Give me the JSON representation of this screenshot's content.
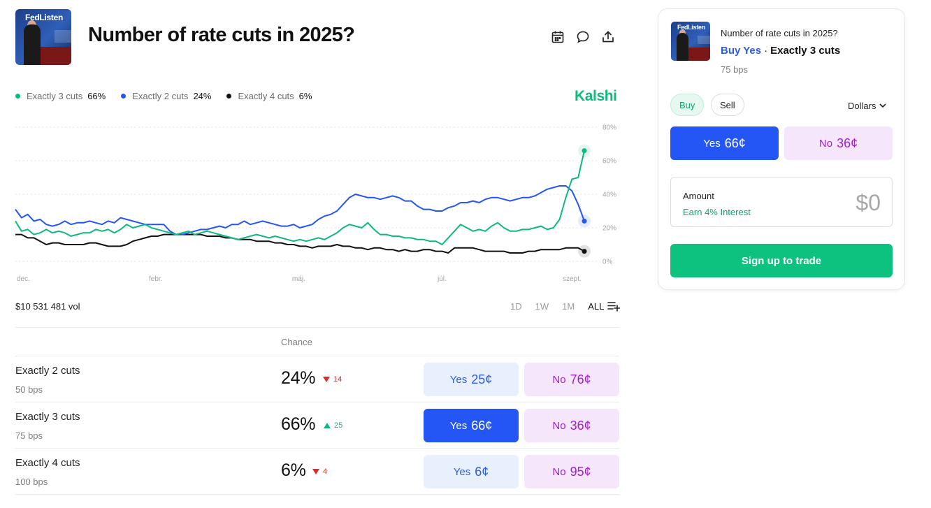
{
  "header": {
    "title": "Number of rate cuts in 2025?",
    "thumbnail_text": "FedListen",
    "icons": [
      "calendar-icon",
      "comment-icon",
      "share-icon"
    ]
  },
  "legend": [
    {
      "label": "Exactly 3 cuts",
      "value": "66%",
      "color": "#0fb97b"
    },
    {
      "label": "Exactly 2 cuts",
      "value": "24%",
      "color": "#2456f5"
    },
    {
      "label": "Exactly 4 cuts",
      "value": "6%",
      "color": "#111111"
    }
  ],
  "brand": "Kalshi",
  "chart_data": {
    "type": "line",
    "x_ticks": [
      "dec.",
      "febr.",
      "máj.",
      "júl.",
      "szept."
    ],
    "y_ticks": [
      "80%",
      "60%",
      "40%",
      "20%",
      "0%"
    ],
    "ylim": [
      0,
      80
    ],
    "grid": true,
    "series": [
      {
        "name": "Exactly 3 cuts",
        "color": "#0fb97b",
        "values": [
          24,
          18,
          19,
          16,
          17,
          19,
          17,
          18,
          17,
          15,
          16,
          17,
          17,
          19,
          18,
          19,
          17,
          19,
          22,
          20,
          21,
          22,
          20,
          19,
          18,
          17,
          16,
          17,
          18,
          16,
          17,
          18,
          17,
          16,
          15,
          14,
          13,
          14,
          15,
          16,
          15,
          14,
          15,
          14,
          13,
          12,
          13,
          12,
          13,
          14,
          13,
          15,
          17,
          20,
          22,
          21,
          20,
          23,
          19,
          16,
          16,
          15,
          15,
          14,
          14,
          13,
          13,
          12,
          12,
          10,
          14,
          18,
          22,
          20,
          18,
          19,
          18,
          21,
          23,
          20,
          18,
          18,
          19,
          19,
          20,
          21,
          19,
          20,
          25,
          38,
          49,
          50,
          66
        ]
      },
      {
        "name": "Exactly 2 cuts",
        "color": "#2456f5",
        "values": [
          31,
          26,
          28,
          24,
          25,
          22,
          21,
          22,
          24,
          22,
          23,
          23,
          24,
          23,
          22,
          24,
          23,
          26,
          25,
          24,
          23,
          22,
          22,
          22,
          22,
          18,
          16,
          16,
          17,
          18,
          19,
          19,
          20,
          21,
          20,
          22,
          22,
          24,
          22,
          23,
          24,
          23,
          22,
          21,
          21,
          22,
          20,
          21,
          22,
          25,
          27,
          28,
          30,
          34,
          38,
          40,
          39,
          38,
          38,
          37,
          38,
          39,
          38,
          36,
          36,
          33,
          31,
          31,
          30,
          30,
          32,
          33,
          35,
          35,
          36,
          35,
          37,
          38,
          38,
          37,
          36,
          37,
          38,
          38,
          39,
          41,
          43,
          44,
          45,
          45,
          42,
          34,
          24
        ]
      },
      {
        "name": "Exactly 4 cuts",
        "color": "#111111",
        "values": [
          16,
          16,
          14,
          14,
          12,
          10,
          11,
          11,
          10,
          10,
          10,
          10,
          11,
          11,
          10,
          9,
          9,
          9,
          10,
          12,
          13,
          14,
          15,
          15,
          16,
          16,
          16,
          16,
          16,
          16,
          16,
          15,
          15,
          15,
          14,
          14,
          13,
          13,
          13,
          12,
          12,
          12,
          11,
          11,
          10,
          10,
          9,
          9,
          8,
          9,
          9,
          9,
          10,
          9,
          9,
          8,
          8,
          7,
          8,
          8,
          7,
          7,
          6,
          7,
          6,
          6,
          7,
          7,
          6,
          6,
          5,
          8,
          8,
          8,
          8,
          7,
          6,
          6,
          6,
          6,
          5,
          5,
          5,
          6,
          6,
          7,
          7,
          7,
          7,
          8,
          8,
          8,
          6
        ]
      }
    ]
  },
  "volume": "$10 531 481 vol",
  "ranges": [
    "1D",
    "1W",
    "1M",
    "ALL"
  ],
  "active_range": "ALL",
  "table": {
    "chance_header": "Chance",
    "rows": [
      {
        "name": "Exactly 2 cuts",
        "sub": "50 bps",
        "chance": "24%",
        "delta": "14",
        "direction": "down",
        "yes_label": "Yes",
        "yes_price": "25¢",
        "no_label": "No",
        "no_price": "76¢",
        "yes_style": "light"
      },
      {
        "name": "Exactly 3 cuts",
        "sub": "75 bps",
        "chance": "66%",
        "delta": "25",
        "direction": "up",
        "yes_label": "Yes",
        "yes_price": "66¢",
        "no_label": "No",
        "no_price": "36¢",
        "yes_style": "solid"
      },
      {
        "name": "Exactly 4 cuts",
        "sub": "100 bps",
        "chance": "6%",
        "delta": "4",
        "direction": "down",
        "yes_label": "Yes",
        "yes_price": "6¢",
        "no_label": "No",
        "no_price": "95¢",
        "yes_style": "light"
      }
    ]
  },
  "trade_card": {
    "title": "Number of rate cuts in 2025?",
    "side": "Buy Yes",
    "separator": "·",
    "outcome": "Exactly 3 cuts",
    "sub": "75 bps",
    "buy_label": "Buy",
    "sell_label": "Sell",
    "currency": "Dollars",
    "yes_label": "Yes",
    "yes_price": "66¢",
    "no_label": "No",
    "no_price": "36¢",
    "amount_label": "Amount",
    "interest_label": "Earn 4% Interest",
    "amount_value": "$0",
    "signup_label": "Sign up to trade"
  }
}
